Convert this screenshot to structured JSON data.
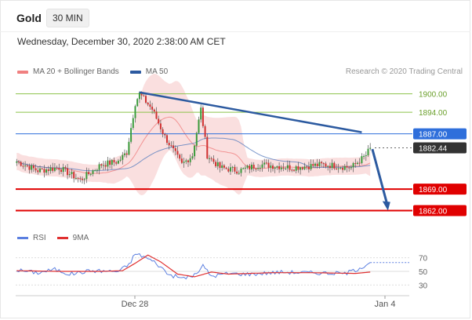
{
  "header": {
    "instrument": "Gold",
    "timeframe": "30 MIN"
  },
  "datetime": "Wednesday, December 30, 2020 2:38:00 AM CET",
  "legend": [
    {
      "label": "MA 20 + Bollinger Bands",
      "color": "#f08080"
    },
    {
      "label": "MA 50",
      "color": "#2c5aa0"
    }
  ],
  "credit": "Research © 2020 Trading Central",
  "rsi_legend": [
    {
      "label": "RSI",
      "color": "#5b7fe0"
    },
    {
      "label": "9MA",
      "color": "#e03030"
    }
  ],
  "colors": {
    "up": "#3a9a3a",
    "down": "#d03030",
    "resistance": "#8bc34a",
    "pivot": "#2f6fdb",
    "support": "#e00000",
    "trend": "#2c5aa0",
    "bollinger": "#f6c9c9",
    "ma20": "#f08080",
    "ma50": "#5b7fbf",
    "last": "#333333"
  },
  "chart_data": [
    {
      "type": "candlestick",
      "title": "Gold",
      "timeframe": "30 MIN",
      "x_ticks": [
        "Dec 28",
        "Jan 4"
      ],
      "ylim": [
        1856,
        1904
      ],
      "close_points": [
        {
          "i": 0,
          "v": 1878
        },
        {
          "i": 10,
          "v": 1875
        },
        {
          "i": 20,
          "v": 1876
        },
        {
          "i": 30,
          "v": 1872
        },
        {
          "i": 40,
          "v": 1877
        },
        {
          "i": 48,
          "v": 1878
        },
        {
          "i": 52,
          "v": 1881
        },
        {
          "i": 56,
          "v": 1897
        },
        {
          "i": 58,
          "v": 1900
        },
        {
          "i": 64,
          "v": 1895
        },
        {
          "i": 70,
          "v": 1886
        },
        {
          "i": 78,
          "v": 1877
        },
        {
          "i": 83,
          "v": 1880
        },
        {
          "i": 87,
          "v": 1895
        },
        {
          "i": 90,
          "v": 1880
        },
        {
          "i": 96,
          "v": 1876
        },
        {
          "i": 105,
          "v": 1875
        },
        {
          "i": 115,
          "v": 1877
        },
        {
          "i": 130,
          "v": 1876
        },
        {
          "i": 145,
          "v": 1877
        },
        {
          "i": 158,
          "v": 1876
        },
        {
          "i": 165,
          "v": 1880
        },
        {
          "i": 167,
          "v": 1882.44
        }
      ],
      "levels": [
        {
          "label": "1900.00",
          "value": 1900.0,
          "kind": "resistance"
        },
        {
          "label": "1894.00",
          "value": 1894.0,
          "kind": "resistance"
        },
        {
          "label": "1887.00",
          "value": 1887.0,
          "kind": "pivot"
        },
        {
          "label": "1882.44",
          "value": 1882.44,
          "kind": "last"
        },
        {
          "label": "1869.00",
          "value": 1869.0,
          "kind": "support"
        },
        {
          "label": "1862.00",
          "value": 1862.0,
          "kind": "support"
        }
      ],
      "trendline": {
        "from": {
          "i": 58,
          "v": 1900.5
        },
        "to": {
          "i": 163,
          "v": 1887.5
        }
      },
      "forecast_arrow": {
        "from": {
          "i": 168,
          "v": 1882.0
        },
        "to": {
          "i": 175,
          "v": 1862.5
        }
      },
      "series": [
        {
          "name": "MA 20 + Bollinger Bands"
        },
        {
          "name": "MA 50"
        }
      ]
    },
    {
      "type": "line",
      "title": "",
      "ylim": [
        20,
        80
      ],
      "y_ticks": [
        70,
        50,
        30
      ],
      "series": [
        {
          "name": "RSI",
          "points": [
            {
              "i": 0,
              "v": 52
            },
            {
              "i": 10,
              "v": 48
            },
            {
              "i": 18,
              "v": 53
            },
            {
              "i": 25,
              "v": 46
            },
            {
              "i": 35,
              "v": 51
            },
            {
              "i": 48,
              "v": 50
            },
            {
              "i": 53,
              "v": 60
            },
            {
              "i": 56,
              "v": 76
            },
            {
              "i": 60,
              "v": 72
            },
            {
              "i": 66,
              "v": 62
            },
            {
              "i": 72,
              "v": 45
            },
            {
              "i": 78,
              "v": 40
            },
            {
              "i": 84,
              "v": 44
            },
            {
              "i": 88,
              "v": 58
            },
            {
              "i": 92,
              "v": 43
            },
            {
              "i": 100,
              "v": 47
            },
            {
              "i": 110,
              "v": 46
            },
            {
              "i": 125,
              "v": 49
            },
            {
              "i": 140,
              "v": 48
            },
            {
              "i": 155,
              "v": 47
            },
            {
              "i": 160,
              "v": 52
            },
            {
              "i": 167,
              "v": 63
            }
          ]
        },
        {
          "name": "9MA",
          "points": [
            {
              "i": 0,
              "v": 51
            },
            {
              "i": 20,
              "v": 50
            },
            {
              "i": 40,
              "v": 50
            },
            {
              "i": 50,
              "v": 51
            },
            {
              "i": 56,
              "v": 62
            },
            {
              "i": 62,
              "v": 74
            },
            {
              "i": 68,
              "v": 64
            },
            {
              "i": 76,
              "v": 46
            },
            {
              "i": 84,
              "v": 42
            },
            {
              "i": 92,
              "v": 49
            },
            {
              "i": 100,
              "v": 46
            },
            {
              "i": 120,
              "v": 48
            },
            {
              "i": 140,
              "v": 48
            },
            {
              "i": 160,
              "v": 47
            },
            {
              "i": 167,
              "v": 49
            }
          ]
        }
      ]
    }
  ]
}
